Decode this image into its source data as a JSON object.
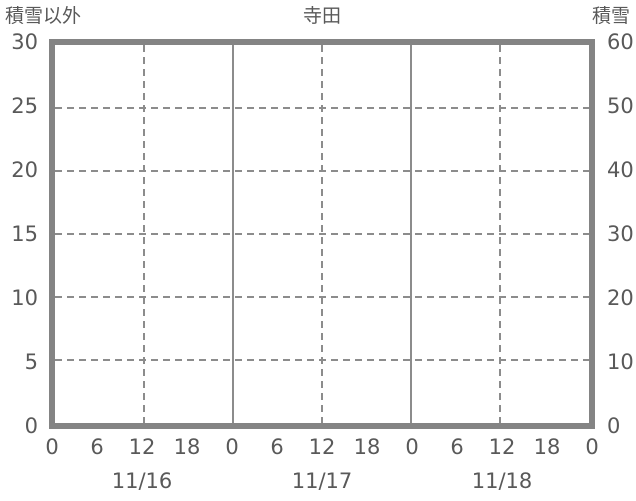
{
  "header": {
    "left_label": "積雪以外",
    "title": "寺田",
    "right_label": "積雪"
  },
  "chart_data": {
    "type": "line",
    "title": "寺田",
    "subtitle": "",
    "left_axis": {
      "label": "積雪以外",
      "min": 0,
      "max": 30,
      "ticks": [
        30,
        25,
        20,
        15,
        10,
        5,
        0
      ]
    },
    "right_axis": {
      "label": "積雪",
      "min": 0,
      "max": 60,
      "ticks": [
        60,
        50,
        40,
        30,
        20,
        10,
        0
      ]
    },
    "x_axis": {
      "total_hours": 72,
      "hour_tick_step": 6,
      "hour_tick_labels": [
        "0",
        "6",
        "12",
        "18",
        "0",
        "6",
        "12",
        "18",
        "0",
        "6",
        "12",
        "18",
        "0"
      ],
      "date_labels": [
        "11/16",
        "11/17",
        "11/18"
      ]
    },
    "gridlines": {
      "grid_on": true,
      "horizontal_values": [
        25,
        20,
        15,
        10,
        5
      ],
      "vertical_dashed_hours": [
        12,
        36,
        60
      ],
      "vertical_solid_hours": [
        24,
        48
      ]
    },
    "legend": "none",
    "series": []
  },
  "colors": {
    "text": "#595959",
    "border": "#848484",
    "gridline": "#8c8c8c",
    "background": "#ffffff"
  }
}
